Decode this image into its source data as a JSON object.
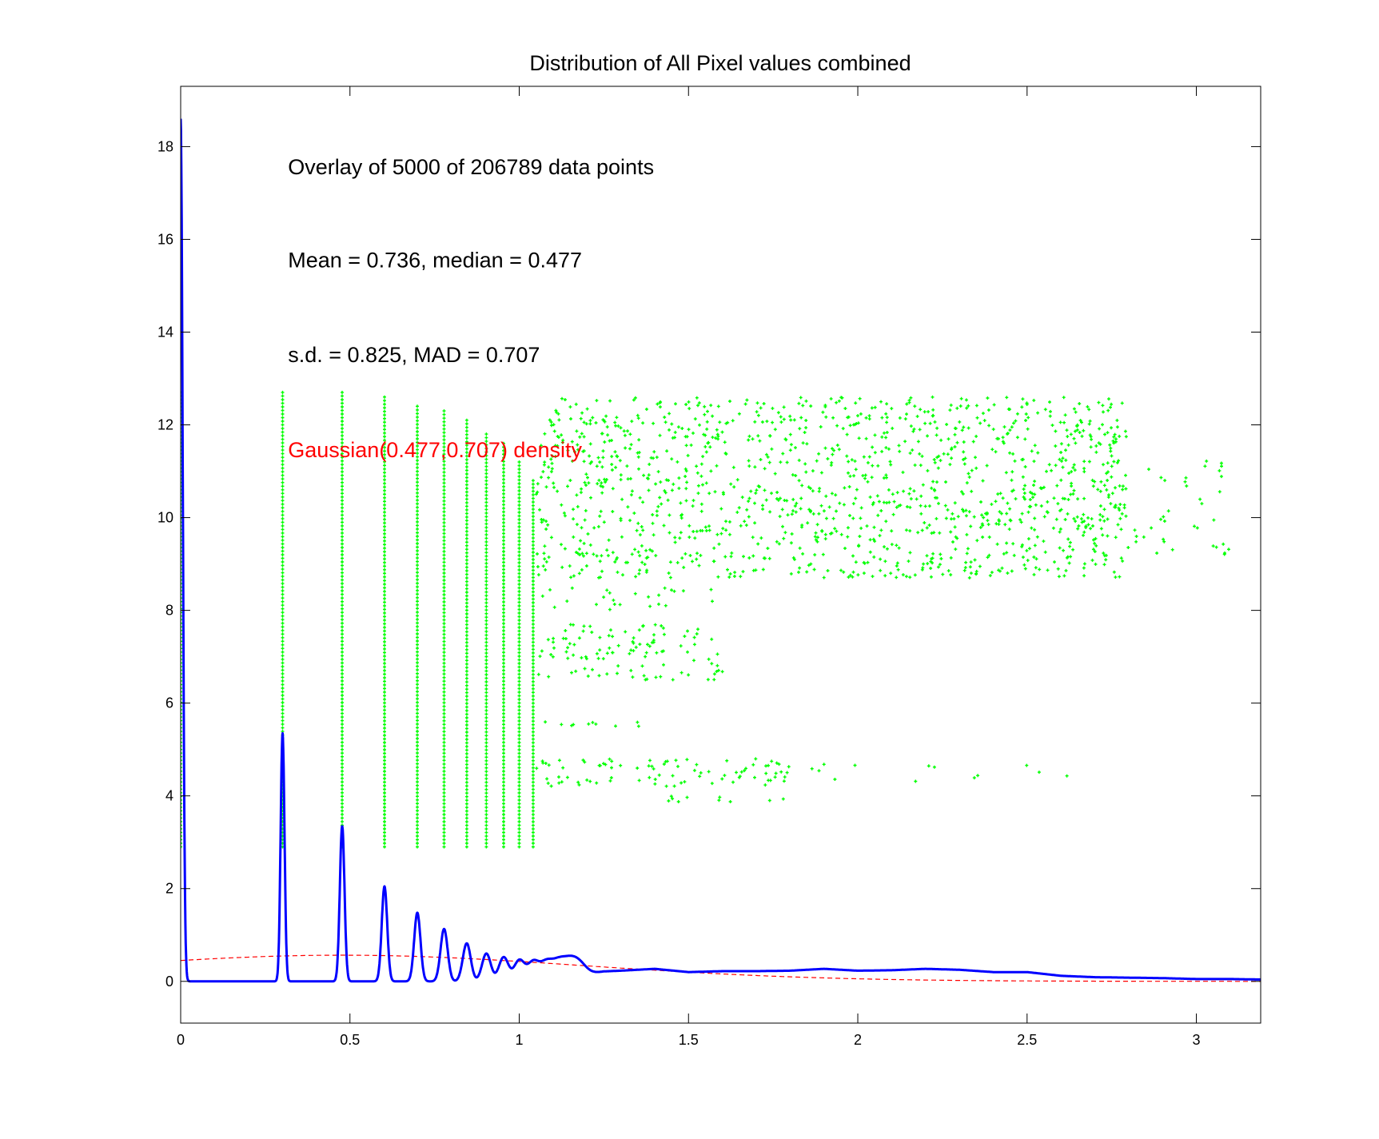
{
  "chart_data": {
    "type": "line",
    "title": "Distribution of All Pixel values combined",
    "xlabel": "",
    "ylabel": "",
    "xlim": [
      0,
      3.19
    ],
    "ylim": [
      -0.9,
      19.3
    ],
    "xticks": [
      "0",
      "0.5",
      "1",
      "1.5",
      "2",
      "2.5",
      "3"
    ],
    "xtick_values": [
      0,
      0.5,
      1,
      1.5,
      2,
      2.5,
      3
    ],
    "yticks": [
      "0",
      "2",
      "4",
      "6",
      "8",
      "10",
      "12",
      "14",
      "16",
      "18"
    ],
    "ytick_values": [
      0,
      2,
      4,
      6,
      8,
      10,
      12,
      14,
      16,
      18
    ],
    "grid": false,
    "annotations": [
      {
        "text": "Overlay of 5000 of 206789 data points",
        "x": 0.317,
        "y": 17.4,
        "color": "#000000"
      },
      {
        "text": "Mean = 0.736,     median = 0.477",
        "x": 0.317,
        "y": 15.4,
        "color": "#000000"
      },
      {
        "text": "s.d. = 0.825,     MAD = 0.707",
        "x": 0.317,
        "y": 13.35,
        "color": "#000000"
      },
      {
        "text": "Gaussian(0.477,0.707) density",
        "x": 0.317,
        "y": 11.3,
        "color": "#ff0000"
      }
    ],
    "series": [
      {
        "kind": "density",
        "color": "#0000ff",
        "line_width": 3,
        "spike_peaks": [
          {
            "x": 0.0,
            "y": 18.6
          },
          {
            "x": 0.301,
            "y": 5.35
          },
          {
            "x": 0.477,
            "y": 3.35
          },
          {
            "x": 0.602,
            "y": 2.05
          },
          {
            "x": 0.699,
            "y": 1.48
          },
          {
            "x": 0.778,
            "y": 1.13
          },
          {
            "x": 0.845,
            "y": 0.82
          },
          {
            "x": 0.903,
            "y": 0.6
          },
          {
            "x": 0.954,
            "y": 0.52
          },
          {
            "x": 1.0,
            "y": 0.45
          },
          {
            "x": 1.041,
            "y": 0.38
          },
          {
            "x": 1.079,
            "y": 0.33
          },
          {
            "x": 1.114,
            "y": 0.3
          },
          {
            "x": 1.146,
            "y": 0.27
          },
          {
            "x": 1.176,
            "y": 0.25
          }
        ],
        "tail": [
          [
            1.2,
            0.2
          ],
          [
            1.3,
            0.23
          ],
          [
            1.4,
            0.27
          ],
          [
            1.5,
            0.2
          ],
          [
            1.6,
            0.22
          ],
          [
            1.7,
            0.22
          ],
          [
            1.8,
            0.23
          ],
          [
            1.9,
            0.27
          ],
          [
            2.0,
            0.23
          ],
          [
            2.1,
            0.24
          ],
          [
            2.2,
            0.27
          ],
          [
            2.3,
            0.25
          ],
          [
            2.4,
            0.2
          ],
          [
            2.5,
            0.2
          ],
          [
            2.6,
            0.12
          ],
          [
            2.7,
            0.09
          ],
          [
            2.8,
            0.08
          ],
          [
            2.9,
            0.07
          ],
          [
            3.0,
            0.05
          ],
          [
            3.1,
            0.05
          ],
          [
            3.19,
            0.04
          ]
        ]
      },
      {
        "kind": "gaussian",
        "color": "#ff0000",
        "dashed": true,
        "mean": 0.477,
        "sd": 0.707,
        "x_range": [
          0,
          3.19
        ]
      },
      {
        "kind": "scatter",
        "color": "#00ff00",
        "marker": "+",
        "n_points": 5000,
        "vertical_columns": [
          {
            "x": 0.0,
            "y_range": [
              2.9,
              12.7
            ]
          },
          {
            "x": 0.301,
            "y_range": [
              2.9,
              12.7
            ]
          },
          {
            "x": 0.477,
            "y_range": [
              2.9,
              12.7
            ]
          },
          {
            "x": 0.602,
            "y_range": [
              2.9,
              12.6
            ]
          },
          {
            "x": 0.699,
            "y_range": [
              2.9,
              12.4
            ]
          },
          {
            "x": 0.778,
            "y_range": [
              2.9,
              12.3
            ]
          },
          {
            "x": 0.845,
            "y_range": [
              2.9,
              12.1
            ]
          },
          {
            "x": 0.903,
            "y_range": [
              2.9,
              11.8
            ]
          },
          {
            "x": 0.954,
            "y_range": [
              2.9,
              11.6
            ]
          },
          {
            "x": 1.0,
            "y_range": [
              2.9,
              11.2
            ]
          },
          {
            "x": 1.041,
            "y_range": [
              2.9,
              10.8
            ]
          }
        ],
        "clouds": [
          {
            "x_range": [
              1.05,
              2.8
            ],
            "y_range": [
              8.7,
              12.6
            ],
            "count": 1300
          },
          {
            "x_range": [
              2.5,
              3.1
            ],
            "y_range": [
              9.2,
              11.3
            ],
            "count": 70
          },
          {
            "x_range": [
              1.05,
              1.6
            ],
            "y_range": [
              6.5,
              7.7
            ],
            "count": 110
          },
          {
            "x_range": [
              1.05,
              1.8
            ],
            "y_range": [
              4.2,
              4.8
            ],
            "count": 80
          },
          {
            "x_range": [
              1.6,
              2.65
            ],
            "y_range": [
              4.3,
              4.7
            ],
            "count": 20
          },
          {
            "x_range": [
              1.4,
              1.8
            ],
            "y_range": [
              3.85,
              4.0
            ],
            "count": 10
          },
          {
            "x_range": [
              1.05,
              1.55
            ],
            "y_range": [
              5.5,
              5.6
            ],
            "count": 10
          },
          {
            "x_range": [
              1.05,
              1.6
            ],
            "y_range": [
              8.0,
              8.5
            ],
            "count": 25
          }
        ]
      }
    ]
  }
}
